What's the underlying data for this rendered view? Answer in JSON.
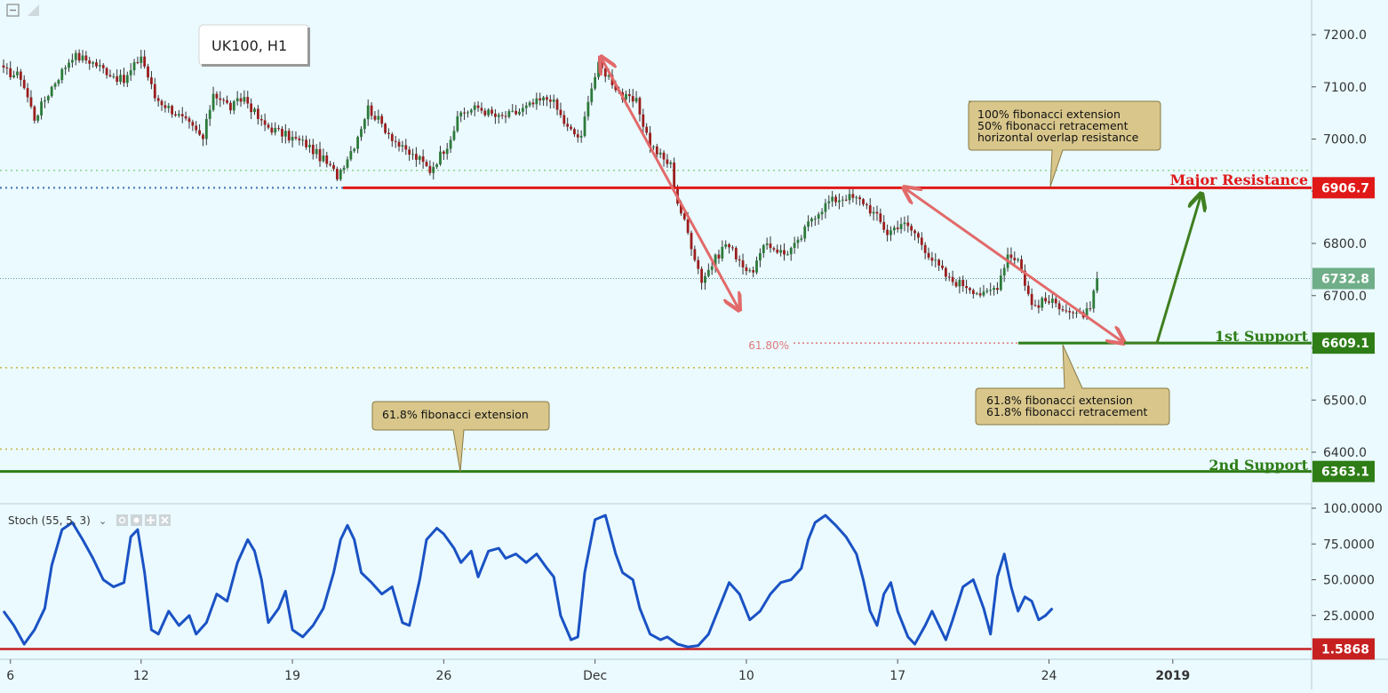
{
  "symbol_label": "UK100, H1",
  "indicator_label": "Stoch (55, 5, 3)",
  "colors": {
    "background": "#eafaff",
    "resistance": "#e01818",
    "support": "#2e7d16",
    "up_candle": "#2c7a3a",
    "down_candle": "#9b1d1d",
    "arrow_red": "#e26a6a",
    "arrow_green": "#3f7f1f",
    "stoch_line": "#1a52c4",
    "callout_fill": "#d8c68b",
    "last_price_tag": "#6fae88"
  },
  "levels": {
    "major_resistance": {
      "label": "Major Resistance",
      "price": 6906.7,
      "price_text": "6906.7"
    },
    "first_support": {
      "label": "1st Support",
      "price": 6609.1,
      "price_text": "6609.1"
    },
    "second_support": {
      "label": "2nd Support",
      "price": 6363.1,
      "price_text": "6363.1"
    },
    "last_price": {
      "price": 6732.8,
      "price_text": "6732.8"
    },
    "fib_marker": {
      "label": "61.80%",
      "price": 6609.1
    }
  },
  "dotted_levels": [
    6940,
    6562,
    6406
  ],
  "callouts": {
    "resistance_note": [
      "100% fibonacci extension",
      "50% fibonacci retracement",
      "horizontal overlap resistance"
    ],
    "support1_note": [
      "61.8% fibonacci extension",
      "61.8% fibonacci retracement"
    ],
    "support2_note": [
      "61.8% fibonacci extension"
    ]
  },
  "price_axis": {
    "ticks": [
      "7200.0",
      "7100.0",
      "7000.0",
      "6900.0",
      "6800.0",
      "6700.0",
      "6600.0",
      "6500.0",
      "6400.0"
    ],
    "values": [
      7200,
      7100,
      7000,
      6900,
      6800,
      6700,
      6600,
      6500,
      6400
    ]
  },
  "stoch_axis": {
    "ticks": [
      "100.0000",
      "75.0000",
      "50.0000",
      "25.0000"
    ],
    "values": [
      100,
      75,
      50,
      25
    ],
    "level_line": 1.5868,
    "level_text": "1.5868"
  },
  "time_axis": {
    "labels": [
      "6",
      "12",
      "19",
      "26",
      "Dec",
      "10",
      "17",
      "24",
      "2019"
    ],
    "bar_index": [
      2,
      40,
      84,
      128,
      172,
      216,
      260,
      304,
      340
    ]
  },
  "chart_data": [
    {
      "type": "candlestick",
      "title": "UK100, H1",
      "ylim": [
        6340,
        7240
      ],
      "x_labels": [
        "6",
        "12",
        "19",
        "26",
        "Dec",
        "10",
        "17",
        "24",
        "2019"
      ],
      "series": [
        {
          "name": "UK100",
          "anchors": [
            [
              0,
              7130
            ],
            [
              5,
              7120
            ],
            [
              9,
              7040
            ],
            [
              14,
              7100
            ],
            [
              20,
              7160
            ],
            [
              25,
              7150
            ],
            [
              30,
              7130
            ],
            [
              35,
              7110
            ],
            [
              40,
              7160
            ],
            [
              44,
              7080
            ],
            [
              50,
              7050
            ],
            [
              55,
              7020
            ],
            [
              58,
              7000
            ],
            [
              61,
              7090
            ],
            [
              66,
              7060
            ],
            [
              70,
              7080
            ],
            [
              75,
              7030
            ],
            [
              81,
              7010
            ],
            [
              88,
              6990
            ],
            [
              93,
              6960
            ],
            [
              97,
              6930
            ],
            [
              102,
              6990
            ],
            [
              106,
              7060
            ],
            [
              111,
              7020
            ],
            [
              116,
              6980
            ],
            [
              121,
              6960
            ],
            [
              124,
              6940
            ],
            [
              129,
              6990
            ],
            [
              133,
              7050
            ],
            [
              138,
              7060
            ],
            [
              144,
              7040
            ],
            [
              149,
              7050
            ],
            [
              155,
              7070
            ],
            [
              159,
              7080
            ],
            [
              164,
              7020
            ],
            [
              168,
              7000
            ],
            [
              170,
              7080
            ],
            [
              173,
              7140
            ],
            [
              176,
              7120
            ],
            [
              180,
              7080
            ],
            [
              184,
              7070
            ],
            [
              188,
              6990
            ],
            [
              192,
              6960
            ],
            [
              194,
              6950
            ],
            [
              196,
              6880
            ],
            [
              199,
              6820
            ],
            [
              203,
              6730
            ],
            [
              206,
              6760
            ],
            [
              210,
              6800
            ],
            [
              214,
              6770
            ],
            [
              217,
              6740
            ],
            [
              222,
              6800
            ],
            [
              227,
              6780
            ],
            [
              231,
              6800
            ],
            [
              235,
              6850
            ],
            [
              240,
              6880
            ],
            [
              245,
              6890
            ],
            [
              250,
              6880
            ],
            [
              254,
              6850
            ],
            [
              257,
              6820
            ],
            [
              261,
              6840
            ],
            [
              265,
              6820
            ],
            [
              270,
              6770
            ],
            [
              275,
              6730
            ],
            [
              280,
              6720
            ],
            [
              285,
              6700
            ],
            [
              289,
              6720
            ],
            [
              292,
              6780
            ],
            [
              295,
              6770
            ],
            [
              299,
              6680
            ],
            [
              303,
              6690
            ],
            [
              308,
              6680
            ],
            [
              312,
              6660
            ],
            [
              316,
              6670
            ],
            [
              318,
              6732.8
            ]
          ]
        }
      ]
    },
    {
      "type": "line",
      "title": "Stoch (55, 5, 3)",
      "ylim": [
        0,
        100
      ],
      "series": [
        {
          "name": "Stoch",
          "values": [
            [
              0,
              28
            ],
            [
              3,
              18
            ],
            [
              6,
              5
            ],
            [
              9,
              15
            ],
            [
              12,
              30
            ],
            [
              14,
              60
            ],
            [
              17,
              85
            ],
            [
              20,
              90
            ],
            [
              23,
              78
            ],
            [
              26,
              65
            ],
            [
              29,
              50
            ],
            [
              32,
              45
            ],
            [
              35,
              48
            ],
            [
              37,
              80
            ],
            [
              39,
              85
            ],
            [
              41,
              55
            ],
            [
              43,
              15
            ],
            [
              45,
              12
            ],
            [
              48,
              28
            ],
            [
              51,
              18
            ],
            [
              54,
              25
            ],
            [
              56,
              12
            ],
            [
              59,
              20
            ],
            [
              62,
              40
            ],
            [
              65,
              35
            ],
            [
              68,
              62
            ],
            [
              71,
              78
            ],
            [
              73,
              70
            ],
            [
              75,
              50
            ],
            [
              77,
              20
            ],
            [
              80,
              30
            ],
            [
              82,
              42
            ],
            [
              84,
              15
            ],
            [
              87,
              10
            ],
            [
              90,
              18
            ],
            [
              93,
              30
            ],
            [
              96,
              55
            ],
            [
              98,
              78
            ],
            [
              100,
              88
            ],
            [
              102,
              78
            ],
            [
              104,
              55
            ],
            [
              107,
              48
            ],
            [
              110,
              40
            ],
            [
              113,
              45
            ],
            [
              116,
              20
            ],
            [
              118,
              18
            ],
            [
              121,
              50
            ],
            [
              123,
              78
            ],
            [
              126,
              86
            ],
            [
              128,
              82
            ],
            [
              131,
              72
            ],
            [
              133,
              62
            ],
            [
              136,
              70
            ],
            [
              138,
              52
            ],
            [
              141,
              70
            ],
            [
              144,
              72
            ],
            [
              146,
              65
            ],
            [
              149,
              68
            ],
            [
              152,
              62
            ],
            [
              155,
              68
            ],
            [
              158,
              58
            ],
            [
              160,
              52
            ],
            [
              162,
              25
            ],
            [
              165,
              8
            ],
            [
              167,
              10
            ],
            [
              169,
              55
            ],
            [
              172,
              92
            ],
            [
              175,
              95
            ],
            [
              178,
              68
            ],
            [
              180,
              55
            ],
            [
              183,
              50
            ],
            [
              185,
              30
            ],
            [
              188,
              12
            ],
            [
              191,
              8
            ],
            [
              193,
              10
            ],
            [
              196,
              5
            ],
            [
              199,
              3
            ],
            [
              202,
              4
            ],
            [
              205,
              12
            ],
            [
              208,
              30
            ],
            [
              211,
              48
            ],
            [
              214,
              40
            ],
            [
              217,
              22
            ],
            [
              220,
              28
            ],
            [
              223,
              40
            ],
            [
              226,
              48
            ],
            [
              229,
              50
            ],
            [
              232,
              58
            ],
            [
              234,
              78
            ],
            [
              236,
              90
            ],
            [
              239,
              95
            ],
            [
              242,
              88
            ],
            [
              245,
              80
            ],
            [
              248,
              68
            ],
            [
              250,
              50
            ],
            [
              252,
              28
            ],
            [
              254,
              18
            ],
            [
              256,
              40
            ],
            [
              258,
              48
            ],
            [
              260,
              28
            ],
            [
              263,
              10
            ],
            [
              265,
              5
            ],
            [
              268,
              18
            ],
            [
              270,
              28
            ],
            [
              272,
              18
            ],
            [
              274,
              8
            ],
            [
              276,
              22
            ],
            [
              279,
              45
            ],
            [
              282,
              50
            ],
            [
              285,
              30
            ],
            [
              287,
              12
            ],
            [
              289,
              52
            ],
            [
              291,
              68
            ],
            [
              293,
              45
            ],
            [
              295,
              28
            ],
            [
              297,
              38
            ],
            [
              299,
              35
            ],
            [
              301,
              22
            ],
            [
              303,
              25
            ],
            [
              305,
              30
            ]
          ]
        }
      ]
    }
  ]
}
